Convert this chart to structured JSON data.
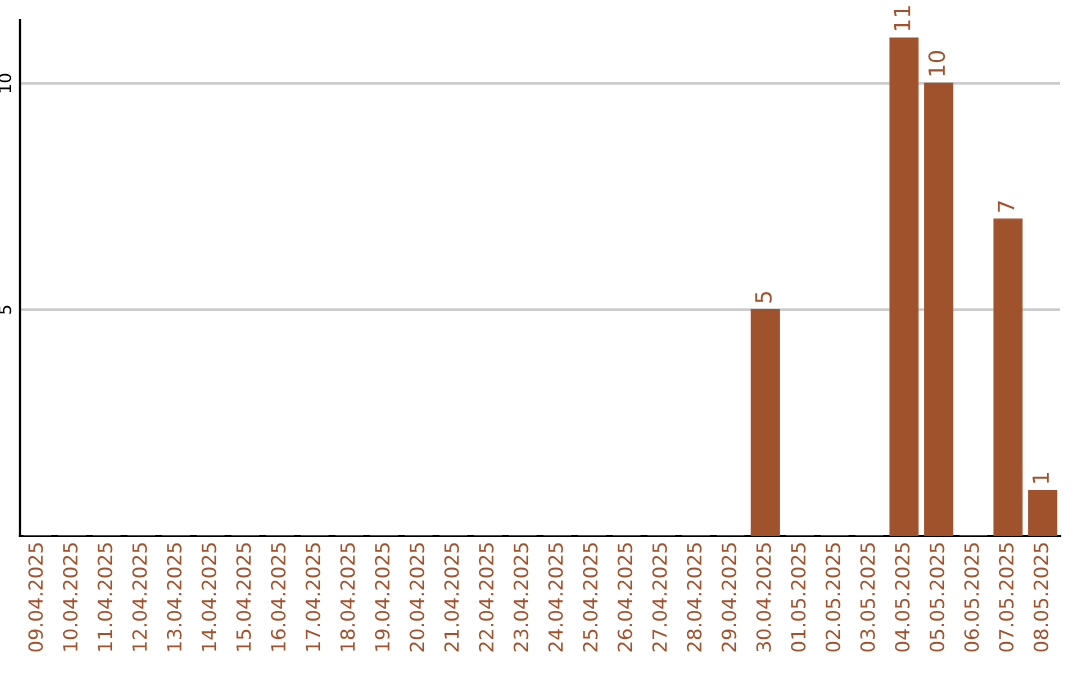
{
  "chart_data": {
    "type": "bar",
    "categories": [
      "09.04.2025",
      "10.04.2025",
      "11.04.2025",
      "12.04.2025",
      "13.04.2025",
      "14.04.2025",
      "15.04.2025",
      "16.04.2025",
      "17.04.2025",
      "18.04.2025",
      "19.04.2025",
      "20.04.2025",
      "21.04.2025",
      "22.04.2025",
      "23.04.2025",
      "24.04.2025",
      "25.04.2025",
      "26.04.2025",
      "27.04.2025",
      "28.04.2025",
      "29.04.2025",
      "30.04.2025",
      "01.05.2025",
      "02.05.2025",
      "03.05.2025",
      "04.05.2025",
      "05.05.2025",
      "06.05.2025",
      "07.05.2025",
      "08.05.2025"
    ],
    "values": [
      0,
      0,
      0,
      0,
      0,
      0,
      0,
      0,
      0,
      0,
      0,
      0,
      0,
      0,
      0,
      0,
      0,
      0,
      0,
      0,
      0,
      5,
      0,
      0,
      0,
      11,
      10,
      0,
      7,
      1
    ],
    "value_labels": [
      null,
      null,
      null,
      null,
      null,
      null,
      null,
      null,
      null,
      null,
      null,
      null,
      null,
      null,
      null,
      null,
      null,
      null,
      null,
      null,
      null,
      "5",
      null,
      null,
      null,
      "11",
      "10",
      null,
      "7",
      "1"
    ],
    "color": "#a0522d",
    "ylim": [
      0,
      11.4
    ],
    "yticks": [
      5,
      10
    ],
    "grid": "y"
  }
}
